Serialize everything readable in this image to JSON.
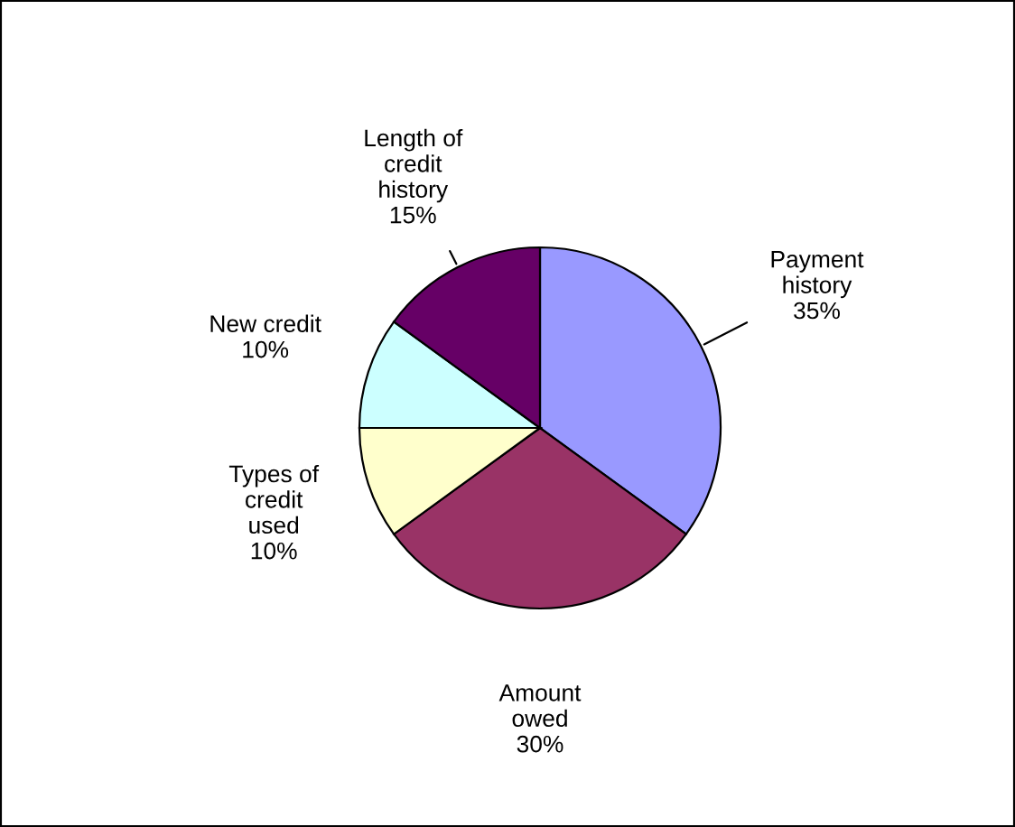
{
  "chart_data": {
    "type": "pie",
    "categories": [
      "Payment\nhistory",
      "Amount\nowed",
      "Types of\ncredit\nused",
      "New credit",
      "Length of\ncredit\nhistory"
    ],
    "values": [
      35,
      30,
      10,
      10,
      15
    ],
    "colors": [
      "#9999ff",
      "#993366",
      "#ffffcc",
      "#ccffff",
      "#660066"
    ],
    "value_labels": [
      "35%",
      "30%",
      "10%",
      "10%",
      "15%"
    ],
    "legend": false
  }
}
